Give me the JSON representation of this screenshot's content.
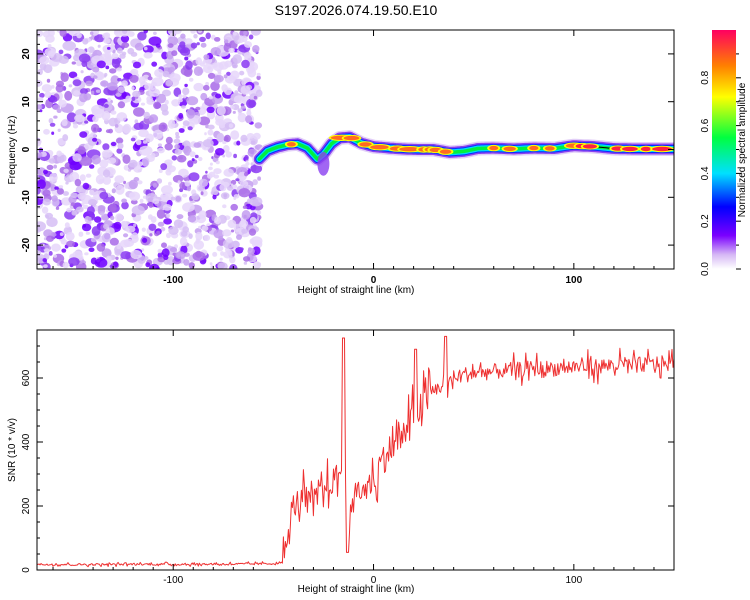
{
  "page_title": "S197.2026.074.19.50.E10",
  "chart_data": [
    {
      "type": "heatmap",
      "title": "S197.2026.074.19.50.E10",
      "xlabel": "Height of straight line (km)",
      "ylabel": "Frequency (Hz)",
      "xlim": [
        -168,
        150
      ],
      "ylim": [
        -25,
        25
      ],
      "xticks": [
        -100,
        0,
        100
      ],
      "yticks": [
        -20,
        -10,
        0,
        10,
        20
      ],
      "colorbar": {
        "label": "Normalized spectral amplitude",
        "range": [
          0,
          1
        ],
        "ticks": [
          "0.0",
          "0.2",
          "0.4",
          "0.6",
          "0.8"
        ],
        "colors": [
          "#ffffff",
          "#d6b8f5",
          "#7a00ff",
          "#0000ff",
          "#00e0ff",
          "#00ff40",
          "#ffff00",
          "#ff8000",
          "#ff0040"
        ]
      },
      "noise_region_x": [
        -168,
        -57
      ],
      "ridge": {
        "x": [
          -57,
          -53,
          -48,
          -43,
          -38,
          -33,
          -28,
          -25,
          -21,
          -17,
          -12,
          -6,
          0,
          8,
          15,
          22,
          30,
          38,
          45,
          52,
          60,
          70,
          80,
          90,
          100,
          110,
          120,
          130,
          140,
          150
        ],
        "freq": [
          -2,
          -0.3,
          0.5,
          1.0,
          1.2,
          0.3,
          -2.0,
          -1.0,
          1.2,
          2.4,
          2.6,
          1.3,
          0.6,
          0.3,
          0.1,
          0.0,
          0.0,
          -0.6,
          -0.4,
          0.2,
          0.3,
          0.1,
          0.3,
          0.2,
          0.8,
          0.6,
          0.2,
          0.1,
          0.1,
          0.1
        ],
        "peak_amplitude": 0.95
      }
    },
    {
      "type": "line",
      "xlabel": "Height of straight line (km)",
      "ylabel": "SNR (10 * v/v)",
      "xlim": [
        -168,
        150
      ],
      "ylim": [
        0,
        750
      ],
      "xticks": [
        -100,
        0,
        100
      ],
      "yticks": [
        0,
        200,
        400,
        600
      ],
      "color": "#ee3030",
      "series": [
        {
          "name": "SNR",
          "x": [
            -168,
            -150,
            -120,
            -90,
            -60,
            -50,
            -45,
            -42,
            -40,
            -35,
            -30,
            -25,
            -20,
            -15,
            -12,
            -8,
            -5,
            0,
            5,
            10,
            15,
            20,
            25,
            30,
            35,
            40,
            45,
            50,
            60,
            70,
            80,
            90,
            100,
            110,
            120,
            130,
            140,
            150
          ],
          "values": [
            18,
            17,
            18,
            18,
            19,
            20,
            25,
            120,
            200,
            230,
            210,
            250,
            280,
            320,
            150,
            260,
            240,
            280,
            350,
            390,
            420,
            480,
            520,
            560,
            580,
            600,
            610,
            615,
            620,
            625,
            630,
            630,
            635,
            635,
            640,
            640,
            645,
            645
          ]
        }
      ],
      "spikes": [
        {
          "x": -15,
          "value": 725
        },
        {
          "x": -13,
          "value": 55
        },
        {
          "x": 21,
          "value": 690
        },
        {
          "x": 36,
          "value": 730
        }
      ]
    }
  ]
}
